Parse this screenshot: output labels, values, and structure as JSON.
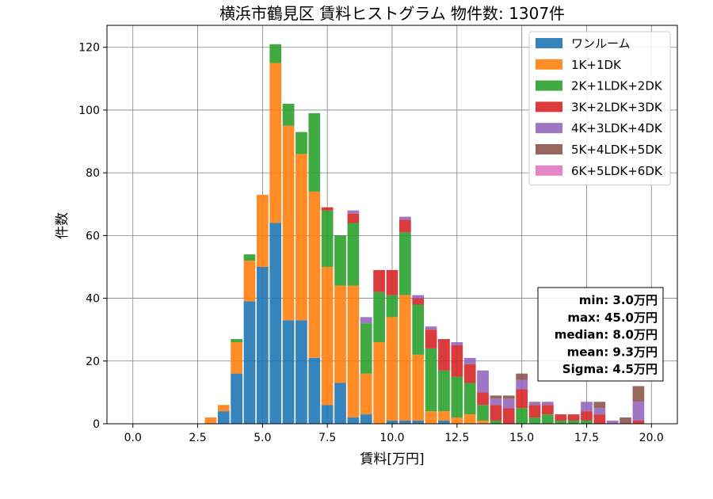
{
  "chart_data": {
    "type": "bar",
    "stacked": true,
    "title": "横浜市鶴見区 賃料ヒストグラム 物件数: 1307件",
    "xlabel": "賃料[万円]",
    "ylabel": "件数",
    "xlim": [
      -1.0,
      21.0
    ],
    "ylim": [
      0,
      127
    ],
    "xticks": [
      0.0,
      2.5,
      5.0,
      7.5,
      10.0,
      12.5,
      15.0,
      17.5,
      20.0
    ],
    "xtick_labels": [
      "0.0",
      "2.5",
      "5.0",
      "7.5",
      "10.0",
      "12.5",
      "15.0",
      "17.5",
      "20.0"
    ],
    "yticks": [
      0,
      20,
      40,
      60,
      80,
      100,
      120
    ],
    "ytick_labels": [
      "0",
      "20",
      "40",
      "60",
      "80",
      "100",
      "120"
    ],
    "grid": true,
    "legend_position": "top-right",
    "bin_width": 0.5,
    "bins": [
      3.0,
      3.5,
      4.0,
      4.5,
      5.0,
      5.5,
      6.0,
      6.5,
      7.0,
      7.5,
      8.0,
      8.5,
      9.0,
      9.5,
      10.0,
      10.5,
      11.0,
      11.5,
      12.0,
      12.5,
      13.0,
      13.5,
      14.0,
      14.5,
      15.0,
      15.5,
      16.0,
      16.5,
      17.0,
      17.5,
      18.0,
      18.5,
      19.0,
      19.5
    ],
    "series": [
      {
        "name": "ワンルーム",
        "color": "#1f77b4",
        "values": [
          0,
          4,
          16,
          39,
          50,
          64,
          33,
          33,
          21,
          6,
          13,
          2,
          3,
          0,
          1,
          1,
          1,
          0,
          1,
          0,
          0,
          0,
          0,
          0,
          0,
          0,
          0,
          0,
          0,
          0,
          0,
          0,
          0,
          0
        ]
      },
      {
        "name": "1K+1DK",
        "color": "#ff7f0e",
        "values": [
          2,
          2,
          10,
          13,
          23,
          51,
          62,
          53,
          53,
          44,
          31,
          42,
          13,
          26,
          33,
          40,
          21,
          4,
          3,
          2,
          3,
          1,
          0,
          0,
          0,
          0,
          0,
          0,
          0,
          0,
          0,
          0,
          0,
          0
        ]
      },
      {
        "name": "2K+1LDK+2DK",
        "color": "#2ca02c",
        "values": [
          0,
          0,
          1,
          2,
          0,
          6,
          7,
          7,
          25,
          18,
          16,
          20,
          16,
          16,
          7,
          20,
          16,
          20,
          13,
          13,
          10,
          5,
          1,
          0,
          5,
          2,
          3,
          1,
          1,
          1,
          0,
          0,
          0,
          0
        ]
      },
      {
        "name": "3K+2LDK+3DK",
        "color": "#d62728",
        "values": [
          0,
          0,
          0,
          0,
          0,
          0,
          0,
          0,
          0,
          1,
          0,
          3,
          0,
          7,
          8,
          4,
          2,
          6,
          10,
          10,
          6,
          4,
          5,
          5,
          6,
          4,
          3,
          2,
          2,
          3,
          3,
          0,
          0,
          1
        ]
      },
      {
        "name": "4K+3LDK+4DK",
        "color": "#9467bd",
        "values": [
          0,
          0,
          0,
          0,
          0,
          0,
          0,
          0,
          0,
          0,
          0,
          1,
          2,
          0,
          0,
          1,
          1,
          1,
          0,
          1,
          2,
          7,
          2,
          3,
          3,
          1,
          1,
          0,
          0,
          3,
          2,
          1,
          0,
          6
        ]
      },
      {
        "name": "5K+4LDK+5DK",
        "color": "#8c564b",
        "values": [
          0,
          0,
          0,
          0,
          0,
          0,
          0,
          0,
          0,
          0,
          0,
          0,
          0,
          0,
          0,
          0,
          0,
          0,
          0,
          0,
          0,
          0,
          1,
          1,
          2,
          0,
          0,
          0,
          0,
          0,
          2,
          0,
          2,
          5
        ]
      },
      {
        "name": "6K+5LDK+6DK",
        "color": "#e377c2",
        "values": [
          0,
          0,
          0,
          0,
          0,
          0,
          0,
          0,
          0,
          0,
          0,
          0,
          0,
          0,
          0,
          0,
          0,
          0,
          0,
          0,
          0,
          0,
          0,
          0,
          0,
          0,
          0,
          0,
          0,
          0,
          0,
          0,
          0,
          0
        ]
      }
    ],
    "stats_box": {
      "lines": [
        "min: 3.0万円",
        "max: 45.0万円",
        "median: 8.0万円",
        "mean: 9.3万円",
        "Sigma: 4.5万円"
      ],
      "position": "right-middle"
    }
  }
}
